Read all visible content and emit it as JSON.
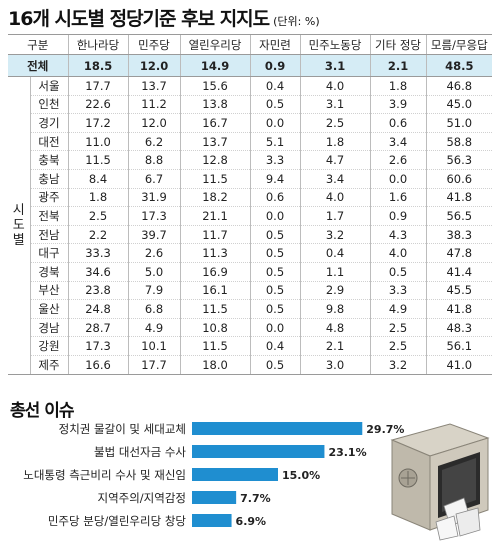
{
  "header": {
    "title": "16개 시도별 정당기준 후보 지지도",
    "unit": "(단위: %)"
  },
  "table": {
    "corner_label": "구분",
    "side_label": [
      "시",
      "도",
      "별"
    ],
    "columns": [
      "한나라당",
      "민주당",
      "열린우리당",
      "자민련",
      "민주노동당",
      "기타 정당",
      "모름/무응답"
    ],
    "total": {
      "label": "전체",
      "values": [
        "18.5",
        "12.0",
        "14.9",
        "0.9",
        "3.1",
        "2.1",
        "48.5"
      ]
    },
    "rows": [
      {
        "label": "서울",
        "values": [
          "17.7",
          "13.7",
          "15.6",
          "0.4",
          "4.0",
          "1.8",
          "46.8"
        ]
      },
      {
        "label": "인천",
        "values": [
          "22.6",
          "11.2",
          "13.8",
          "0.5",
          "3.1",
          "3.9",
          "45.0"
        ]
      },
      {
        "label": "경기",
        "values": [
          "17.2",
          "12.0",
          "16.7",
          "0.0",
          "2.5",
          "0.6",
          "51.0"
        ]
      },
      {
        "label": "대전",
        "values": [
          "11.0",
          "6.2",
          "13.7",
          "5.1",
          "1.8",
          "3.4",
          "58.8"
        ]
      },
      {
        "label": "충북",
        "values": [
          "11.5",
          "8.8",
          "12.8",
          "3.3",
          "4.7",
          "2.6",
          "56.3"
        ]
      },
      {
        "label": "충남",
        "values": [
          "8.4",
          "6.7",
          "11.5",
          "9.4",
          "3.4",
          "0.0",
          "60.6"
        ]
      },
      {
        "label": "광주",
        "values": [
          "1.8",
          "31.9",
          "18.2",
          "0.6",
          "4.0",
          "1.6",
          "41.8"
        ]
      },
      {
        "label": "전북",
        "values": [
          "2.5",
          "17.3",
          "21.1",
          "0.0",
          "1.7",
          "0.9",
          "56.5"
        ]
      },
      {
        "label": "전남",
        "values": [
          "2.2",
          "39.7",
          "11.7",
          "0.5",
          "3.2",
          "4.3",
          "38.3"
        ]
      },
      {
        "label": "대구",
        "values": [
          "33.3",
          "2.6",
          "11.3",
          "0.5",
          "0.4",
          "4.0",
          "47.8"
        ]
      },
      {
        "label": "경북",
        "values": [
          "34.6",
          "5.0",
          "16.9",
          "0.5",
          "1.1",
          "0.5",
          "41.4"
        ]
      },
      {
        "label": "부산",
        "values": [
          "23.8",
          "7.9",
          "16.1",
          "0.5",
          "2.9",
          "3.3",
          "45.5"
        ]
      },
      {
        "label": "울산",
        "values": [
          "24.8",
          "6.8",
          "11.5",
          "0.5",
          "9.8",
          "4.9",
          "41.8"
        ]
      },
      {
        "label": "경남",
        "values": [
          "28.7",
          "4.9",
          "10.8",
          "0.0",
          "4.8",
          "2.5",
          "48.3"
        ]
      },
      {
        "label": "강원",
        "values": [
          "17.3",
          "10.1",
          "11.5",
          "0.4",
          "2.1",
          "2.5",
          "56.1"
        ]
      },
      {
        "label": "제주",
        "values": [
          "16.6",
          "17.7",
          "18.0",
          "0.5",
          "3.0",
          "3.2",
          "41.0"
        ]
      }
    ]
  },
  "issues": {
    "title": "총선 이슈"
  },
  "colors": {
    "bar": "#1f8ed0",
    "total_row_bg": "#d5ecf5"
  },
  "chart_data": [
    {
      "type": "table",
      "title": "16개 시도별 정당기준 후보 지지도",
      "unit": "%",
      "columns": [
        "한나라당",
        "민주당",
        "열린우리당",
        "자민련",
        "민주노동당",
        "기타 정당",
        "모름/무응답"
      ],
      "rows": [
        "전체",
        "서울",
        "인천",
        "경기",
        "대전",
        "충북",
        "충남",
        "광주",
        "전북",
        "전남",
        "대구",
        "경북",
        "부산",
        "울산",
        "경남",
        "강원",
        "제주"
      ]
    },
    {
      "type": "bar",
      "orientation": "horizontal",
      "title": "총선 이슈",
      "categories": [
        "정치권 물갈이 및 세대교체",
        "불법 대선자금 수사",
        "노대통령 측근비리 수사 및 재신임",
        "지역주의/지역감정",
        "민주당 분당/열린우리당 창당"
      ],
      "values": [
        29.7,
        23.1,
        15.0,
        7.7,
        6.9
      ],
      "value_labels": [
        "29.7%",
        "23.1%",
        "15.0%",
        "7.7%",
        "6.9%"
      ],
      "xlim": [
        0,
        30
      ]
    }
  ]
}
